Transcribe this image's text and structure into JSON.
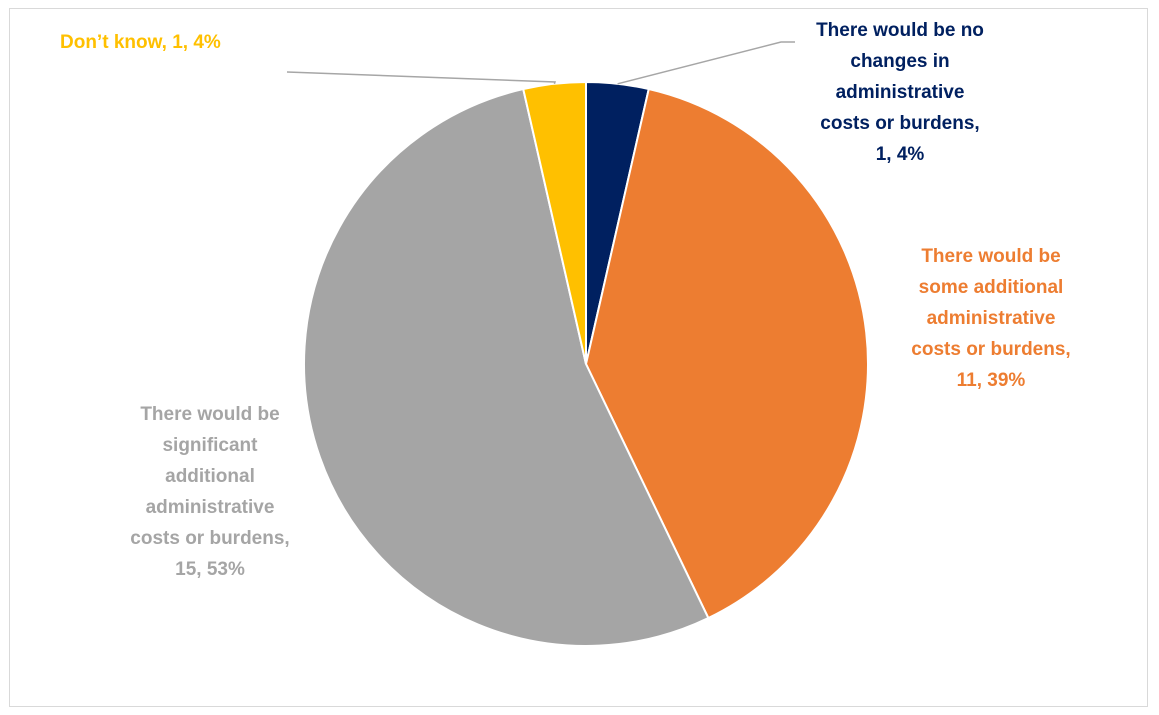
{
  "chart_data": {
    "type": "pie",
    "categories": [
      "There would be no changes in administrative costs or burdens",
      "There would be some additional administrative costs or burdens",
      "There would be significant additional administrative costs or burdens",
      "Don’t know"
    ],
    "values": [
      1,
      11,
      15,
      1
    ],
    "percents": [
      "4%",
      "39%",
      "53%",
      "4%"
    ],
    "colors": [
      "#002060",
      "#ED7D31",
      "#A5A5A5",
      "#FFC000"
    ],
    "data_labels": [
      [
        "There would be no",
        "changes in",
        "administrative",
        "costs or burdens,",
        "1, 4%"
      ],
      [
        "There would be",
        "some additional",
        "administrative",
        "costs or burdens,",
        "11, 39%"
      ],
      [
        "There would be",
        "significant",
        "additional",
        "administrative",
        "costs or burdens,",
        "15, 53%"
      ],
      [
        "Don’t know, 1, 4%"
      ]
    ],
    "start_angle": "12 o'clock",
    "direction": "clockwise",
    "legend": "none",
    "title": ""
  }
}
